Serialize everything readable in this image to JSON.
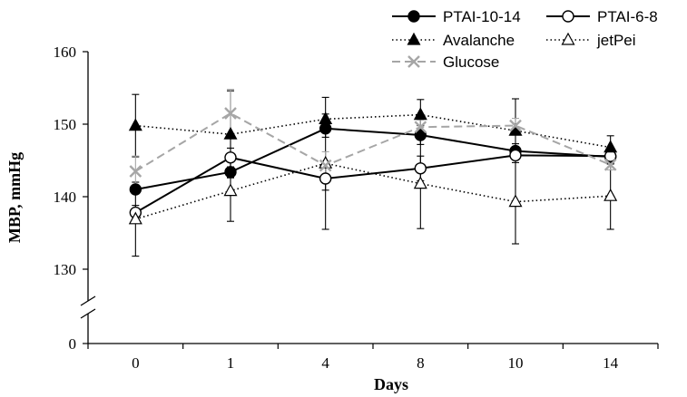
{
  "chart_data": {
    "type": "line",
    "title": "",
    "xlabel": "Days",
    "ylabel": "MBP, mmHg",
    "categories": [
      "0",
      "1",
      "4",
      "8",
      "10",
      "14"
    ],
    "yticks": [
      "0",
      "130",
      "140",
      "150",
      "160"
    ],
    "ylim": [
      130,
      160
    ],
    "axis_break": true,
    "grid": false,
    "legend_position": "top-right",
    "series": [
      {
        "name": "PTAI-10-14",
        "values": [
          141.0,
          143.4,
          149.4,
          148.5,
          146.3,
          145.5
        ],
        "errors": [
          0.6,
          0.7,
          1.2,
          1.3,
          1.0,
          1.0
        ],
        "marker": "circle-filled",
        "line": "solid",
        "color": "#000000"
      },
      {
        "name": "PTAI-6-8",
        "values": [
          137.8,
          145.4,
          142.5,
          143.9,
          145.7,
          145.6
        ],
        "errors": [
          1.0,
          1.3,
          1.6,
          1.7,
          0.6,
          1.0
        ],
        "marker": "circle-open",
        "line": "solid",
        "color": "#000000"
      },
      {
        "name": "Avalanche",
        "values": [
          149.8,
          148.6,
          150.7,
          151.3,
          149.1,
          146.8
        ],
        "errors": [
          4.3,
          6.0,
          0.7,
          2.1,
          4.4,
          1.6
        ],
        "marker": "triangle-filled",
        "line": "dotted",
        "color": "#000000"
      },
      {
        "name": "jetPei",
        "values": [
          136.9,
          140.8,
          144.6,
          141.8,
          139.3,
          140.1
        ],
        "errors": [
          5.1,
          4.2,
          9.1,
          6.2,
          5.8,
          4.6
        ],
        "marker": "triangle-open",
        "line": "dotted",
        "color": "#000000"
      },
      {
        "name": "Glucose",
        "values": [
          143.5,
          151.5,
          144.3,
          149.6,
          149.8,
          144.4
        ],
        "errors": [
          2.1,
          3.3,
          1.9,
          1.0,
          1.0,
          0.7
        ],
        "marker": "x",
        "line": "dashed",
        "color": "#a6a6a6"
      }
    ]
  }
}
